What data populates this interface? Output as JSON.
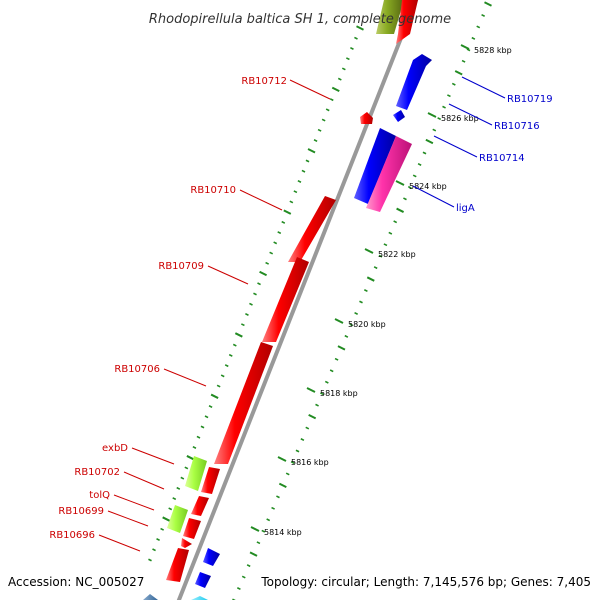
{
  "title": "Rhodopirellula baltica SH 1, complete genome",
  "footer": {
    "accession": "Accession: NC_005027",
    "topology": "Topology: circular; Length: 7,145,576 bp; Genes: 7,405"
  },
  "colors": {
    "backbone": "#999999",
    "tick": "#228b22",
    "left_label": "#cc0000",
    "right_label": "#0000cc",
    "red": "#ff0000",
    "blue": "#0000ff",
    "magenta": "#ff33aa",
    "lime": "#aaff44",
    "olive": "#88aa22"
  },
  "ticks": [
    {
      "label": "5828 kbp"
    },
    {
      "label": "5826 kbp"
    },
    {
      "label": "5824 kbp"
    },
    {
      "label": "5822 kbp"
    },
    {
      "label": "5820 kbp"
    },
    {
      "label": "5818 kbp"
    },
    {
      "label": "5816 kbp"
    },
    {
      "label": "5814 kbp"
    }
  ],
  "labels_left": [
    {
      "text": "RB10712"
    },
    {
      "text": "RB10710"
    },
    {
      "text": "RB10709"
    },
    {
      "text": "RB10706"
    },
    {
      "text": "exbD"
    },
    {
      "text": "RB10702"
    },
    {
      "text": "tolQ"
    },
    {
      "text": "RB10699"
    },
    {
      "text": "RB10696"
    }
  ],
  "labels_right": [
    {
      "text": "RB10719"
    },
    {
      "text": "RB10716"
    },
    {
      "text": "RB10714"
    },
    {
      "text": "ligA"
    }
  ]
}
